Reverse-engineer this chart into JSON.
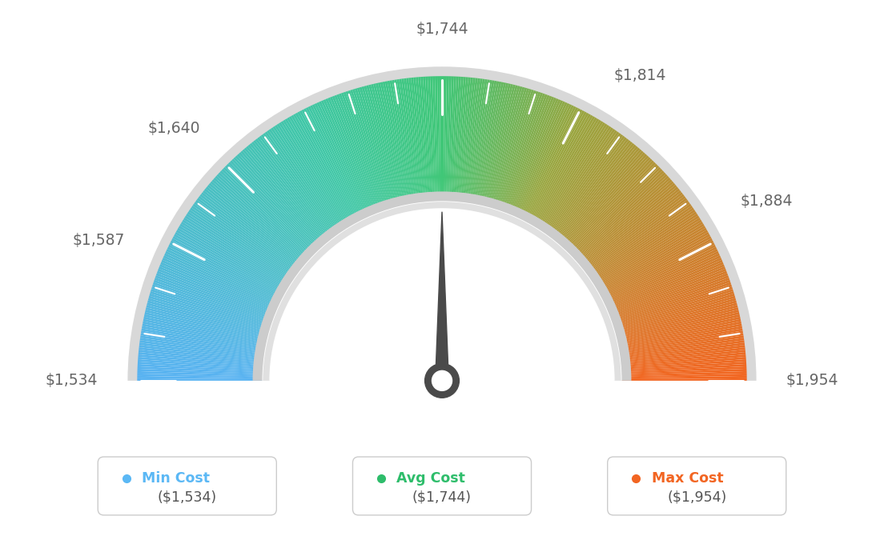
{
  "min_val": 1534,
  "max_val": 1954,
  "avg_val": 1744,
  "needle_val": 1744,
  "labels": [
    "$1,534",
    "$1,587",
    "$1,640",
    "$1,744",
    "$1,814",
    "$1,884",
    "$1,954"
  ],
  "label_vals": [
    1534,
    1587,
    1640,
    1744,
    1814,
    1884,
    1954
  ],
  "legend_items": [
    {
      "label": "Min Cost",
      "value": "($1,534)",
      "color": "#5bb8f5"
    },
    {
      "label": "Avg Cost",
      "value": "($1,744)",
      "color": "#2ebd6b"
    },
    {
      "label": "Max Cost",
      "value": "($1,954)",
      "color": "#f26522"
    }
  ],
  "bg_color": "#ffffff",
  "color_stops": [
    [
      0.0,
      [
        0.35,
        0.7,
        0.95
      ]
    ],
    [
      0.35,
      [
        0.25,
        0.78,
        0.65
      ]
    ],
    [
      0.5,
      [
        0.25,
        0.78,
        0.47
      ]
    ],
    [
      0.65,
      [
        0.6,
        0.65,
        0.25
      ]
    ],
    [
      1.0,
      [
        0.95,
        0.4,
        0.13
      ]
    ]
  ]
}
